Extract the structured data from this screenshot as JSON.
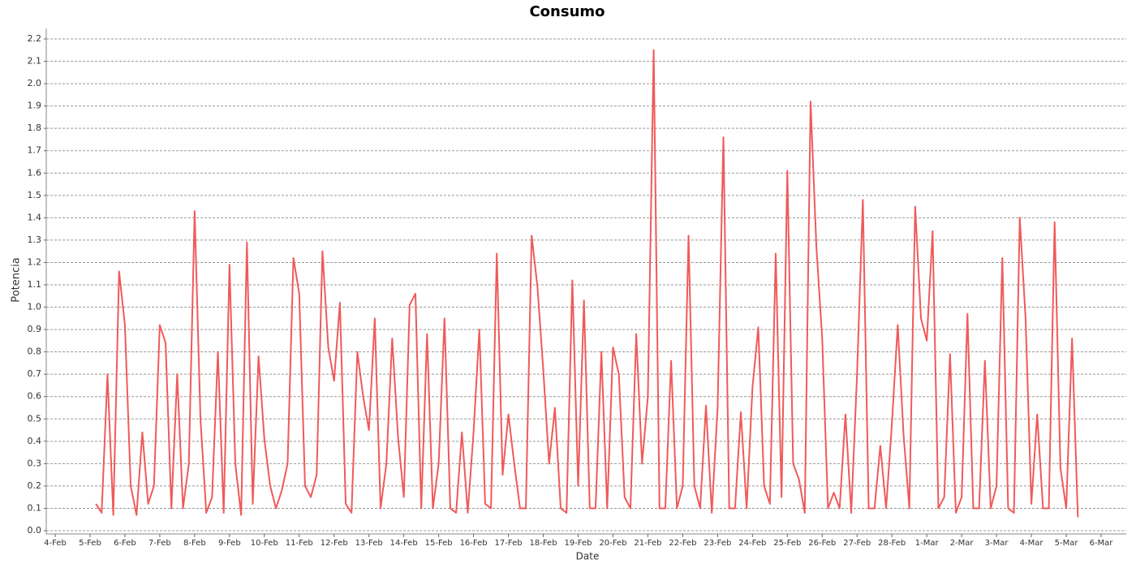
{
  "chart_data": {
    "type": "line",
    "title": "Consumo",
    "x_label": "Date",
    "y_label": "Potencia",
    "color": "#f05a5a",
    "grid": true,
    "ylim": [
      0,
      2.2
    ],
    "yticks": [
      {
        "value": 0,
        "label": "0.0"
      },
      0.1,
      0.2,
      0.3,
      0.4,
      0.5,
      0.6,
      0.7,
      0.8,
      0.9,
      {
        "value": 1,
        "label": "1.0"
      },
      1.1,
      1.2,
      1.3,
      1.4,
      1.5,
      1.6,
      1.7,
      1.8,
      1.9,
      {
        "value": 2,
        "label": "2.0"
      },
      2.1,
      2.2
    ],
    "categories": [
      "4-Feb",
      null,
      null,
      null,
      null,
      null,
      "5-Feb",
      null,
      null,
      null,
      null,
      null,
      "6-Feb",
      null,
      null,
      null,
      null,
      null,
      "7-Feb",
      null,
      null,
      null,
      null,
      null,
      "8-Feb",
      null,
      null,
      null,
      null,
      null,
      "9-Feb",
      null,
      null,
      null,
      null,
      null,
      "10-Feb",
      null,
      null,
      null,
      null,
      null,
      "11-Feb",
      null,
      null,
      null,
      null,
      null,
      "12-Feb",
      null,
      null,
      null,
      null,
      null,
      "13-Feb",
      null,
      null,
      null,
      null,
      null,
      "14-Feb",
      null,
      null,
      null,
      null,
      null,
      "15-Feb",
      null,
      null,
      null,
      null,
      null,
      "16-Feb",
      null,
      null,
      null,
      null,
      null,
      "17-Feb",
      null,
      null,
      null,
      null,
      null,
      "18-Feb",
      null,
      null,
      null,
      null,
      null,
      "19-Feb",
      null,
      null,
      null,
      null,
      null,
      "20-Feb",
      null,
      null,
      null,
      null,
      null,
      "21-Feb",
      null,
      null,
      null,
      null,
      null,
      "22-Feb",
      null,
      null,
      null,
      null,
      null,
      "23-Feb",
      null,
      null,
      null,
      null,
      null,
      "24-Feb",
      null,
      null,
      null,
      null,
      null,
      "25-Feb",
      null,
      null,
      null,
      null,
      null,
      "26-Feb",
      null,
      null,
      null,
      null,
      null,
      "27-Feb",
      null,
      null,
      null,
      null,
      null,
      "28-Feb",
      null,
      null,
      null,
      null,
      null,
      "1-Mar",
      null,
      null,
      null,
      null,
      null,
      "2-Mar",
      null,
      null,
      null,
      null,
      null,
      "3-Mar",
      null,
      null,
      null,
      null,
      null,
      "4-Mar",
      null,
      null,
      null,
      null,
      null,
      "5-Mar",
      null,
      null,
      null,
      null,
      null,
      "6-Mar"
    ],
    "values": [
      null,
      null,
      null,
      null,
      null,
      null,
      null,
      0.12,
      0.08,
      0.7,
      0.07,
      1.16,
      0.92,
      0.2,
      0.07,
      0.44,
      0.12,
      0.2,
      0.92,
      0.84,
      0.1,
      0.7,
      0.1,
      0.3,
      1.43,
      0.5,
      0.08,
      0.15,
      0.8,
      0.08,
      1.19,
      0.3,
      0.07,
      1.29,
      0.12,
      0.78,
      0.41,
      0.2,
      0.1,
      0.18,
      0.3,
      1.22,
      1.06,
      0.2,
      0.15,
      0.25,
      1.25,
      0.82,
      0.67,
      1.02,
      0.12,
      0.08,
      0.8,
      0.6,
      0.45,
      0.95,
      0.1,
      0.3,
      0.86,
      0.42,
      0.15,
      1.01,
      1.06,
      0.1,
      0.88,
      0.1,
      0.3,
      0.95,
      0.1,
      0.08,
      0.44,
      0.08,
      0.44,
      0.9,
      0.12,
      0.1,
      1.24,
      0.25,
      0.52,
      0.3,
      0.1,
      0.1,
      1.32,
      1.09,
      0.72,
      0.3,
      0.55,
      0.1,
      0.08,
      1.12,
      0.2,
      1.03,
      0.1,
      0.1,
      0.8,
      0.1,
      0.82,
      0.7,
      0.15,
      0.1,
      0.88,
      0.3,
      0.6,
      2.15,
      0.1,
      0.1,
      0.76,
      0.1,
      0.2,
      1.32,
      0.2,
      0.1,
      0.56,
      0.08,
      0.55,
      1.76,
      0.1,
      0.1,
      0.53,
      0.1,
      0.64,
      0.91,
      0.2,
      0.12,
      1.24,
      0.15,
      1.61,
      0.3,
      0.23,
      0.08,
      1.92,
      1.27,
      0.86,
      0.1,
      0.17,
      0.1,
      0.52,
      0.08,
      0.7,
      1.48,
      0.1,
      0.1,
      0.38,
      0.1,
      0.48,
      0.92,
      0.43,
      0.1,
      1.45,
      0.95,
      0.85,
      1.34,
      0.1,
      0.15,
      0.79,
      0.08,
      0.15,
      0.97,
      0.1,
      0.1,
      0.76,
      0.1,
      0.2,
      1.22,
      0.1,
      0.08,
      1.4,
      0.95,
      0.12,
      0.52,
      0.1,
      0.1,
      1.38,
      0.28,
      0.1,
      0.86,
      0.06,
      null,
      null,
      null,
      null
    ]
  }
}
